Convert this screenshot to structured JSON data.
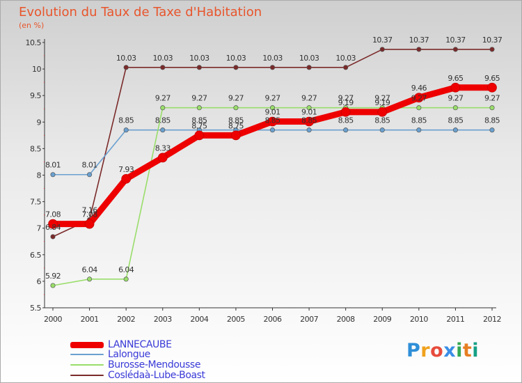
{
  "title": "Evolution du Taux de Taxe d'Habitation",
  "unit": "(en %)",
  "logo": {
    "text": "Proxiti",
    "letters": [
      "P",
      "r",
      "o",
      "x",
      "i",
      "t",
      "i"
    ],
    "colors": [
      "#2f8fd8",
      "#f0a21e",
      "#e74c3c",
      "#3a8ee6",
      "#34a853",
      "#e67e22",
      "#16a085"
    ]
  },
  "chart_data": {
    "type": "line",
    "title": "Evolution du Taux de Taxe d'Habitation",
    "ylabel": "(en %)",
    "xlabel": "",
    "ylim": [
      5.5,
      10.5
    ],
    "y_ticks": [
      "5.5",
      "6",
      "6.5",
      "7",
      "7.5",
      "8",
      "8.5",
      "9",
      "9.5",
      "10",
      "10.5"
    ],
    "categories": [
      "2000",
      "2001",
      "2002",
      "2003",
      "2004",
      "2005",
      "2006",
      "2007",
      "2008",
      "2009",
      "2010",
      "2011",
      "2012"
    ],
    "series": [
      {
        "name": "Coslédaà-Lube-Boast",
        "color": "#7b2a2a",
        "values": [
          6.84,
          7.16,
          10.03,
          10.03,
          10.03,
          10.03,
          10.03,
          10.03,
          10.03,
          10.37,
          10.37,
          10.37,
          10.37
        ],
        "labels": [
          "6.84",
          "7.16",
          "10.03",
          "10.03",
          "10.03",
          "10.03",
          "10.03",
          "10.03",
          "10.03",
          "10.37",
          "10.37",
          "10.37",
          "10.37"
        ]
      },
      {
        "name": "Lalongue",
        "color": "#6aa0cf",
        "values": [
          8.01,
          8.01,
          8.85,
          8.85,
          8.85,
          8.85,
          8.85,
          8.85,
          8.85,
          8.85,
          8.85,
          8.85,
          8.85
        ],
        "labels": [
          "8.01",
          "8.01",
          "8.85",
          "8.85",
          "8.85",
          "8.85",
          "8.85",
          "8.85",
          "8.85",
          "8.85",
          "8.85",
          "8.85",
          "8.85"
        ]
      },
      {
        "name": "Burosse-Mendousse",
        "color": "#99dd6a",
        "values": [
          5.92,
          6.04,
          6.04,
          9.27,
          9.27,
          9.27,
          9.27,
          9.27,
          9.27,
          9.27,
          9.27,
          9.27,
          9.27
        ],
        "labels": [
          "5.92",
          "6.04",
          "6.04",
          "9.27",
          "9.27",
          "9.27",
          "9.27",
          "9.27",
          "9.27",
          "9.27",
          "9.27",
          "9.27",
          "9.27"
        ]
      },
      {
        "name": "LANNECAUBE",
        "color": "#ee0000",
        "values": [
          7.08,
          7.08,
          7.93,
          8.33,
          8.75,
          8.75,
          9.01,
          9.01,
          9.19,
          9.19,
          9.46,
          9.65,
          9.65
        ],
        "labels": [
          "7.08",
          "7.08",
          "7.93",
          "8.33",
          "8.75",
          "8.75",
          "9.01",
          "9.01",
          "9.19",
          "9.19",
          "9.46",
          "9.65",
          "9.65"
        ]
      }
    ],
    "legend": [
      {
        "name": "LANNECAUBE",
        "color": "#ee0000"
      },
      {
        "name": "Lalongue",
        "color": "#6aa0cf"
      },
      {
        "name": "Burosse-Mendousse",
        "color": "#99dd6a"
      },
      {
        "name": "Coslédaà-Lube-Boast",
        "color": "#7b2a2a"
      }
    ],
    "legend_position": "bottom-left",
    "grid": false
  }
}
